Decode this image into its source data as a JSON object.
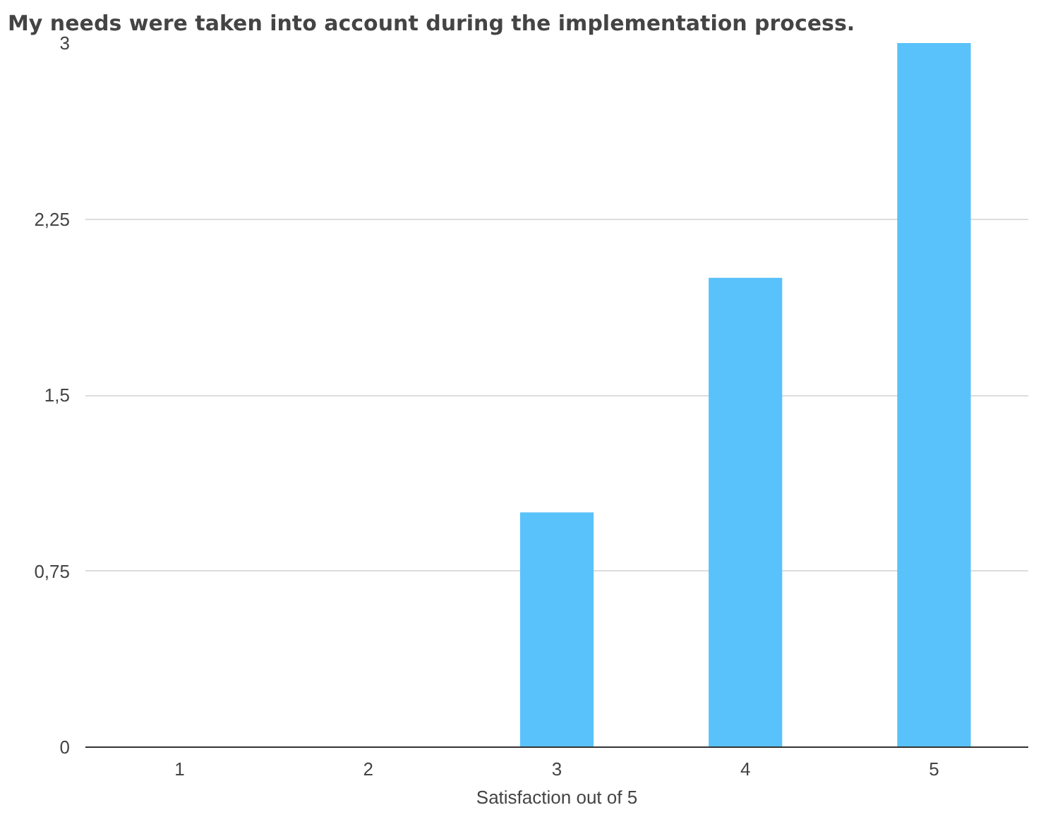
{
  "chart_data": {
    "type": "bar",
    "title": "My needs were taken into account during the implementation process.",
    "xlabel": "Satisfaction out of 5",
    "categories": [
      "1",
      "2",
      "3",
      "4",
      "5"
    ],
    "values": [
      0,
      0,
      1,
      2,
      3
    ],
    "color": "#5ac2fa",
    "ylim": [
      0,
      3
    ],
    "yticks": [
      0,
      {
        "value": 0.75,
        "label": "0,75"
      },
      {
        "value": 1.5,
        "label": "1,5"
      },
      {
        "value": 2.25,
        "label": "2,25"
      },
      3
    ],
    "grid": "y"
  }
}
